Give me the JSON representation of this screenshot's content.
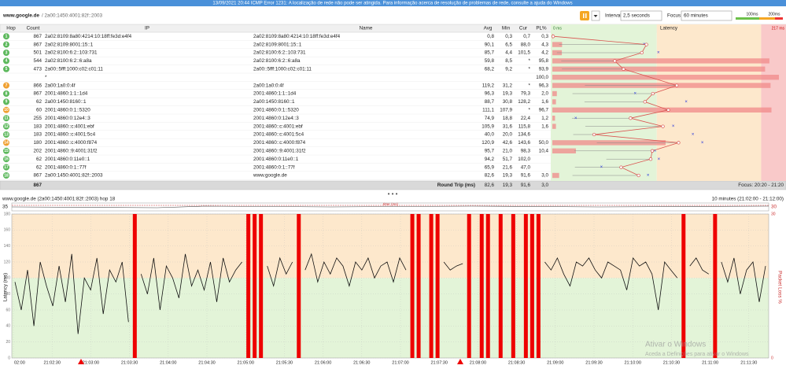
{
  "title_bar": "13/09/2021 20:44 ICMP Error 1231: A localização de rede não pode ser atingida. Para informação acerca de resolução de problemas de rede, consulte a ajuda do Windows",
  "toolbar": {
    "target": "www.google.de",
    "address": "/ 2a00:1450:4001:82f::2003",
    "interval_label": "Interval",
    "interval": "2,5 seconds",
    "focus_label": "Focus",
    "focus": "60 minutes",
    "thresholds": [
      {
        "value": 100,
        "label": "100ms"
      },
      {
        "value": 200,
        "label": "200ms"
      }
    ]
  },
  "table": {
    "columns": [
      "Hop",
      "Count",
      "IP",
      "Name",
      "Avg",
      "Min",
      "Cur",
      "PL%",
      "Latency"
    ],
    "latency_scale": [
      {
        "value": 0,
        "label": "0 ms"
      },
      {
        "value": 217,
        "label": "217 ms"
      }
    ],
    "hop_colors": [
      "#5cb85c",
      "#5cb85c",
      "#5cb85c",
      "#5cb85c",
      "#5cb85c",
      null,
      "#f0a030",
      "#5cb85c",
      "#5cb85c",
      "#f0a030",
      "#5cb85c",
      "#5cb85c",
      "#5cb85c",
      "#f0a030",
      "#5cb85c",
      "#5cb85c",
      "#5cb85c",
      "#5cb85c"
    ],
    "rows": [
      [
        "1",
        "867",
        "2a02:8109:8a80:4214:10:18ff:fe3d:e4f4",
        "2a02:8109:8a80:4214:10:18ff:fe3d:e4f4",
        "0,8",
        "0,3",
        "0,7",
        "0,3"
      ],
      [
        "2",
        "867",
        "2a02:8109:8001:15::1",
        "2a02:8109:8001:15::1",
        "90,1",
        "6,5",
        "88,0",
        "4,3"
      ],
      [
        "3",
        "501",
        "2a02:8100:6:2::103:731",
        "2a02:8100:6:2::103:731",
        "85,7",
        "4,4",
        "101,5",
        "4,2"
      ],
      [
        "4",
        "544",
        "2a02:8100:6:2::6:a8a",
        "2a02:8100:6:2::6:a8a",
        "59,8",
        "8,5",
        "*",
        "95,8"
      ],
      [
        "5",
        "473",
        "2a00::5fff:1000:c02:c01:11",
        "2a00::5fff:1000:c02:c01:11",
        "68,2",
        "9,2",
        "*",
        "93,9"
      ],
      [
        null,
        null,
        "*",
        null,
        null,
        null,
        null,
        "100,0"
      ],
      [
        "7",
        "866",
        "2a00:1a0:0:4f",
        "2a00:1a0:0:4f",
        "119,2",
        "31,2",
        "*",
        "96,3"
      ],
      [
        "8",
        "867",
        "2001:4860:1:1::1d4",
        "2001:4860:1:1::1d4",
        "96,3",
        "19,3",
        "79,3",
        "2,0"
      ],
      [
        "9",
        "62",
        "2a00:1450:8160::1",
        "2a00:1450:8160::1",
        "88,7",
        "30,8",
        "128,2",
        "1,6"
      ],
      [
        "10",
        "60",
        "2001:4860:0:1::5320",
        "2001:4860:0:1::5320",
        "111,1",
        "107,9",
        "*",
        "96,7"
      ],
      [
        "11",
        "255",
        "2001:4860:0:12e4::3",
        "2001:4860:0:12e4::3",
        "74,9",
        "18,8",
        "22,4",
        "1,2"
      ],
      [
        "12",
        "183",
        "2001:4860::c:4001:ebf",
        "2001:4860::c:4001:ebf",
        "105,9",
        "31,6",
        "115,8",
        "1,6"
      ],
      [
        "13",
        "183",
        "2001:4860::c:4001:5c4",
        "2001:4860::c:4001:5c4",
        "40,0",
        "20,0",
        "134,6",
        null
      ],
      [
        "14",
        "180",
        "2001:4860::c:4000:f874",
        "2001:4860::c:4000:f874",
        "120,9",
        "42,6",
        "143,6",
        "50,0"
      ],
      [
        "15",
        "202",
        "2001:4860::9:4001:31f2",
        "2001:4860::9:4001:31f2",
        "95,7",
        "21,0",
        "98,3",
        "10,4"
      ],
      [
        "16",
        "62",
        "2001:4860:0:11e0::1",
        "2001:4860:0:11e0::1",
        "94,2",
        "51,7",
        "102,0",
        null
      ],
      [
        "17",
        "62",
        "2001:4860:0:1::77f",
        "2001:4860:0:1::77f",
        "65,9",
        "21,6",
        "47,0",
        null
      ],
      [
        "18",
        "867",
        "2a00:1450:4001:82f::2003",
        "www.google.de",
        "82,6",
        "19,3",
        "91,6",
        "3,0"
      ]
    ],
    "footer": {
      "count": "867",
      "label": "Round Trip (ms)",
      "avg": "82,6",
      "min": "19,3",
      "cur": "91,6",
      "pl": "3,0",
      "focus": "Focus: 20:20 - 21:20"
    }
  },
  "graph": {
    "title": "www.google.de (2a00:1450:4001:82f::2003) hop 18",
    "range": "10 minutes (21:02:00 - 21:12:00)",
    "jitter_label": "Jitter (ms)",
    "jitter_left": "35",
    "jitter_right": "30",
    "ylabel": "Latency (ms)",
    "y2label": "Packet Loss %",
    "ylim": [
      0,
      180
    ],
    "yticks": [
      0,
      20,
      40,
      60,
      80,
      100,
      120,
      140,
      160,
      180
    ],
    "y2lim": [
      0,
      30
    ],
    "y2ticks": [
      0,
      30
    ],
    "xtick_labels": [
      "02:00",
      "21:02:30",
      "21:03:00",
      "21:03:30",
      "21:04:00",
      "21:04:30",
      "21:05:00",
      "21:05:30",
      "21:06:00",
      "21:06:30",
      "21:07:00",
      "21:07:30",
      "21:08:00",
      "21:08:30",
      "21:09:00",
      "21:09:30",
      "21:10:00",
      "21:10:30",
      "21:11:00",
      "21:11:30"
    ],
    "latency": [
      95,
      60,
      110,
      40,
      120,
      90,
      65,
      115,
      70,
      130,
      30,
      100,
      85,
      125,
      55,
      110,
      95,
      120,
      45,
      null,
      105,
      80,
      125,
      60,
      115,
      100,
      75,
      130,
      90,
      110,
      85,
      120,
      70,
      125,
      95,
      110,
      120,
      null,
      null,
      null,
      115,
      90,
      125,
      105,
      120,
      null,
      110,
      130,
      95,
      120,
      105,
      125,
      115,
      90,
      120,
      110,
      125,
      100,
      115,
      120,
      95,
      125,
      110,
      null,
      null,
      125,
      null,
      null,
      120,
      110,
      115,
      118,
      null,
      105,
      null,
      null,
      125,
      null,
      110,
      null,
      95,
      null,
      null,
      null,
      120,
      110,
      125,
      105,
      90,
      120,
      115,
      125,
      110,
      100,
      120,
      115,
      110,
      85,
      125,
      115,
      120,
      105,
      60,
      120,
      110,
      100,
      null,
      115,
      125,
      110,
      105,
      null,
      120,
      95,
      125,
      80,
      110,
      120,
      70,
      115
    ],
    "loss_samples": [
      19,
      37,
      38,
      39,
      45,
      63,
      64,
      66,
      67,
      72,
      74,
      75,
      77,
      79,
      81,
      82,
      83,
      106,
      111
    ]
  },
  "watermark": {
    "line1": "Ativar o Windows",
    "line2": "Aceda a Definições para ativar o Windows"
  }
}
